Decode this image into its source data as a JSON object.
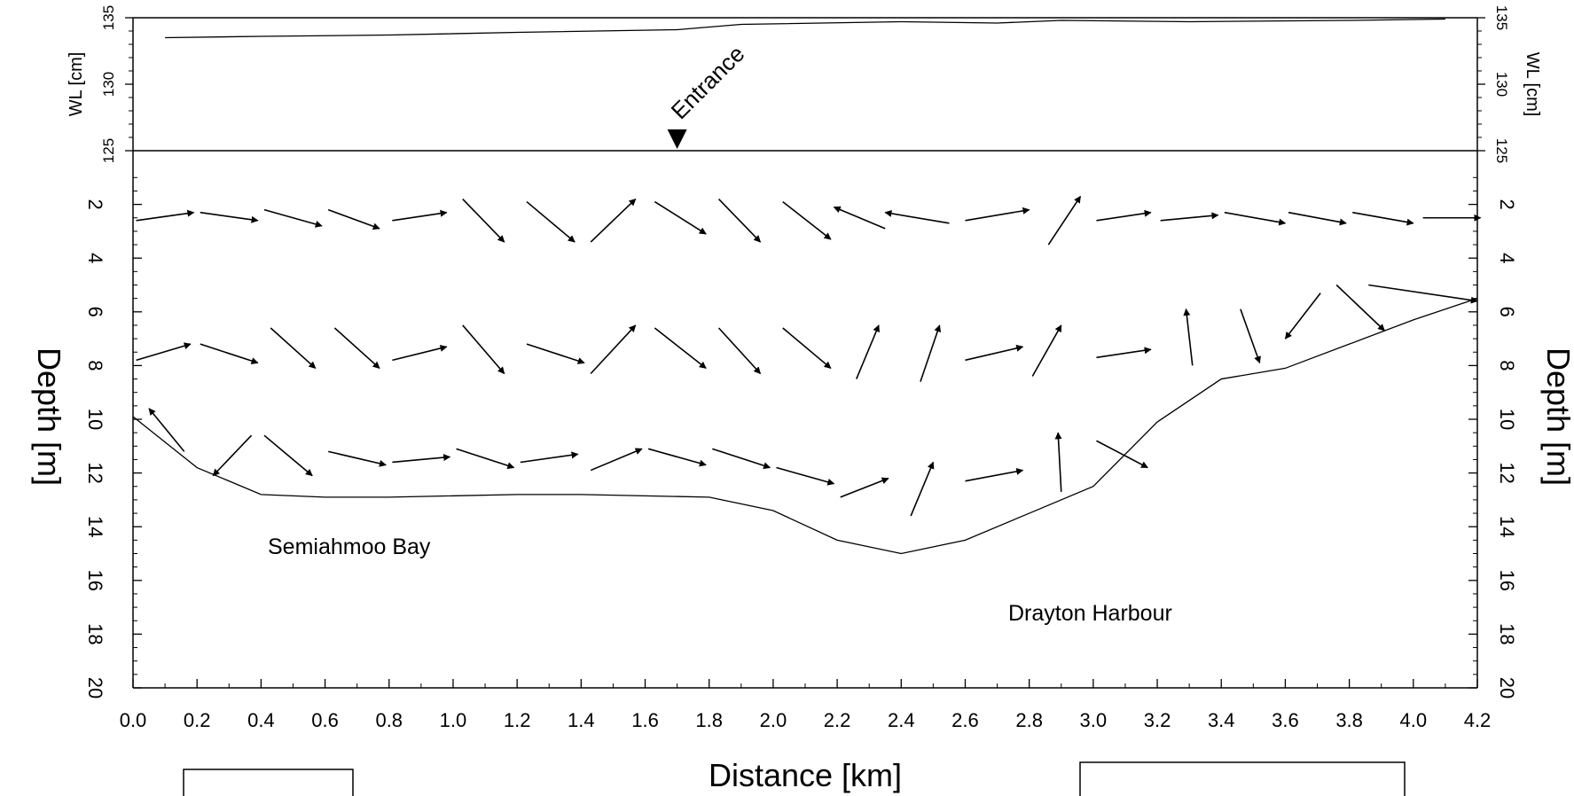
{
  "chart_data": {
    "type": "vector-transect",
    "x_axis": {
      "label": "Distance [km]",
      "range": [
        0,
        4.2
      ],
      "ticks": [
        "0.0",
        "0.2",
        "0.4",
        "0.6",
        "0.8",
        "1.0",
        "1.2",
        "1.4",
        "1.6",
        "1.8",
        "2.0",
        "2.2",
        "2.4",
        "2.6",
        "2.8",
        "3.0",
        "3.2",
        "3.4",
        "3.6",
        "3.8",
        "4.0",
        "4.2"
      ]
    },
    "wl_panel": {
      "label_left": "WL [cm]",
      "label_right": "WL [cm]",
      "range": [
        125,
        135
      ],
      "ticks": [
        "125",
        "130",
        "135"
      ],
      "series": [
        {
          "x": 0.1,
          "y": 133.5
        },
        {
          "x": 0.4,
          "y": 133.6
        },
        {
          "x": 0.8,
          "y": 133.7
        },
        {
          "x": 1.2,
          "y": 133.9
        },
        {
          "x": 1.7,
          "y": 134.1
        },
        {
          "x": 1.9,
          "y": 134.5
        },
        {
          "x": 2.4,
          "y": 134.7
        },
        {
          "x": 2.7,
          "y": 134.6
        },
        {
          "x": 2.9,
          "y": 134.8
        },
        {
          "x": 3.3,
          "y": 134.7
        },
        {
          "x": 3.8,
          "y": 134.8
        },
        {
          "x": 4.1,
          "y": 134.9
        }
      ],
      "marker": {
        "label": "Entrance",
        "x": 1.7
      }
    },
    "depth_panel": {
      "label_left": "Depth [m]",
      "label_right": "Depth [m]",
      "range": [
        0,
        20
      ],
      "ticks": [
        "2",
        "4",
        "6",
        "8",
        "10",
        "12",
        "14",
        "16",
        "18",
        "20"
      ],
      "bottom_profile": [
        {
          "x": 0.0,
          "y": 9.9
        },
        {
          "x": 0.2,
          "y": 11.8
        },
        {
          "x": 0.4,
          "y": 12.8
        },
        {
          "x": 0.6,
          "y": 12.9
        },
        {
          "x": 0.8,
          "y": 12.9
        },
        {
          "x": 1.2,
          "y": 12.8
        },
        {
          "x": 1.4,
          "y": 12.8
        },
        {
          "x": 1.8,
          "y": 12.9
        },
        {
          "x": 2.0,
          "y": 13.4
        },
        {
          "x": 2.2,
          "y": 14.5
        },
        {
          "x": 2.4,
          "y": 15.0
        },
        {
          "x": 2.6,
          "y": 14.5
        },
        {
          "x": 2.8,
          "y": 13.5
        },
        {
          "x": 3.0,
          "y": 12.5
        },
        {
          "x": 3.2,
          "y": 10.1
        },
        {
          "x": 3.4,
          "y": 8.5
        },
        {
          "x": 3.6,
          "y": 8.1
        },
        {
          "x": 3.8,
          "y": 7.2
        },
        {
          "x": 4.0,
          "y": 6.3
        },
        {
          "x": 4.2,
          "y": 5.5
        }
      ],
      "vectors": [
        [
          0.01,
          2.6,
          0.19,
          2.3
        ],
        [
          0.21,
          2.3,
          0.39,
          2.6
        ],
        [
          0.41,
          2.2,
          0.59,
          2.8
        ],
        [
          0.61,
          2.2,
          0.77,
          2.9
        ],
        [
          0.81,
          2.6,
          0.98,
          2.3
        ],
        [
          1.03,
          1.8,
          1.16,
          3.4
        ],
        [
          1.23,
          1.9,
          1.38,
          3.4
        ],
        [
          1.43,
          3.4,
          1.57,
          1.8
        ],
        [
          1.63,
          1.9,
          1.79,
          3.1
        ],
        [
          1.83,
          1.8,
          1.96,
          3.4
        ],
        [
          2.03,
          1.9,
          2.18,
          3.3
        ],
        [
          2.35,
          2.9,
          2.19,
          2.1
        ],
        [
          2.55,
          2.7,
          2.35,
          2.3
        ],
        [
          2.6,
          2.6,
          2.8,
          2.2
        ],
        [
          2.86,
          3.5,
          2.96,
          1.7
        ],
        [
          3.01,
          2.6,
          3.18,
          2.3
        ],
        [
          3.21,
          2.6,
          3.39,
          2.4
        ],
        [
          3.41,
          2.3,
          3.6,
          2.7
        ],
        [
          3.61,
          2.3,
          3.79,
          2.7
        ],
        [
          3.81,
          2.3,
          4.0,
          2.7
        ],
        [
          4.03,
          2.5,
          4.21,
          2.5
        ],
        [
          0.01,
          7.8,
          0.18,
          7.2
        ],
        [
          0.21,
          7.2,
          0.39,
          7.9
        ],
        [
          0.43,
          6.6,
          0.57,
          8.1
        ],
        [
          0.63,
          6.6,
          0.77,
          8.1
        ],
        [
          0.81,
          7.8,
          0.98,
          7.3
        ],
        [
          1.03,
          6.5,
          1.16,
          8.3
        ],
        [
          1.23,
          7.2,
          1.41,
          7.9
        ],
        [
          1.43,
          8.3,
          1.57,
          6.5
        ],
        [
          1.63,
          6.6,
          1.79,
          8.1
        ],
        [
          1.83,
          6.6,
          1.96,
          8.3
        ],
        [
          2.03,
          6.6,
          2.18,
          8.1
        ],
        [
          2.26,
          8.5,
          2.33,
          6.5
        ],
        [
          2.46,
          8.6,
          2.52,
          6.5
        ],
        [
          2.6,
          7.8,
          2.78,
          7.3
        ],
        [
          2.81,
          8.4,
          2.9,
          6.5
        ],
        [
          3.01,
          7.7,
          3.18,
          7.4
        ],
        [
          3.31,
          8.0,
          3.29,
          5.9
        ],
        [
          3.46,
          5.9,
          3.52,
          7.9
        ],
        [
          3.71,
          5.3,
          3.6,
          7.0
        ],
        [
          3.76,
          5.0,
          3.91,
          6.7
        ],
        [
          3.86,
          5.0,
          4.2,
          5.6
        ],
        [
          0.16,
          11.2,
          0.05,
          9.6
        ],
        [
          0.37,
          10.6,
          0.25,
          12.1
        ],
        [
          0.41,
          10.6,
          0.56,
          12.1
        ],
        [
          0.61,
          11.2,
          0.79,
          11.7
        ],
        [
          0.81,
          11.6,
          0.99,
          11.4
        ],
        [
          1.01,
          11.1,
          1.19,
          11.8
        ],
        [
          1.21,
          11.6,
          1.39,
          11.3
        ],
        [
          1.43,
          11.9,
          1.59,
          11.1
        ],
        [
          1.61,
          11.1,
          1.79,
          11.7
        ],
        [
          1.81,
          11.1,
          1.99,
          11.8
        ],
        [
          2.01,
          11.8,
          2.19,
          12.4
        ],
        [
          2.21,
          12.9,
          2.36,
          12.2
        ],
        [
          2.43,
          13.6,
          2.5,
          11.6
        ],
        [
          2.6,
          12.3,
          2.78,
          11.9
        ],
        [
          2.9,
          12.7,
          2.89,
          10.5
        ],
        [
          3.01,
          10.8,
          3.17,
          11.8
        ]
      ]
    },
    "annotations": [
      "Semiahmoo Bay",
      "Drayton Harbour"
    ]
  }
}
